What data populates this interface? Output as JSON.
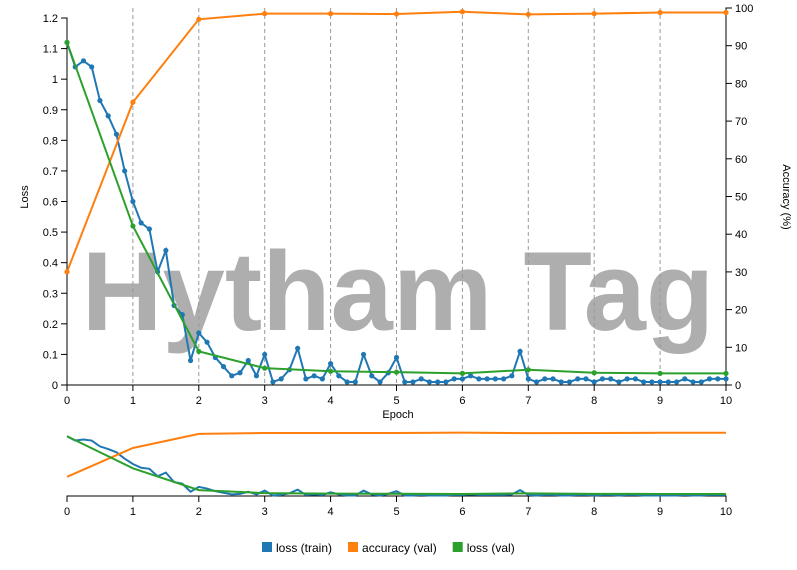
{
  "chart_data": {
    "type": "line",
    "watermark": "Hytham Tag",
    "xlabel": "Epoch",
    "ylabel": "Loss",
    "y2label": "Accuracy (%)",
    "xlim": [
      0,
      10
    ],
    "xticks": [
      0,
      1,
      2,
      3,
      4,
      5,
      6,
      7,
      8,
      9,
      10
    ],
    "ylim": [
      0,
      1.2
    ],
    "yticks": [
      0,
      0.1,
      0.2,
      0.3,
      0.4,
      0.5,
      0.6,
      0.7,
      0.8,
      0.9,
      1,
      1.1,
      1.2
    ],
    "y2lim": [
      0,
      100
    ],
    "y2ticks": [
      0,
      10,
      20,
      30,
      40,
      50,
      60,
      70,
      80,
      90,
      100
    ],
    "grid": "x",
    "series": [
      {
        "name": "loss (train)",
        "color": "#1f77b4",
        "x": [
          0,
          0.125,
          0.25,
          0.375,
          0.5,
          0.625,
          0.75,
          0.875,
          1,
          1.125,
          1.25,
          1.375,
          1.5,
          1.625,
          1.75,
          1.875,
          2,
          2.125,
          2.25,
          2.375,
          2.5,
          2.625,
          2.75,
          2.875,
          3,
          3.125,
          3.25,
          3.375,
          3.5,
          3.625,
          3.75,
          3.875,
          4,
          4.125,
          4.25,
          4.375,
          4.5,
          4.625,
          4.75,
          4.875,
          5,
          5.125,
          5.25,
          5.375,
          5.5,
          5.625,
          5.75,
          5.875,
          6,
          6.125,
          6.25,
          6.375,
          6.5,
          6.625,
          6.75,
          6.875,
          7,
          7.125,
          7.25,
          7.375,
          7.5,
          7.625,
          7.75,
          7.875,
          8,
          8.125,
          8.25,
          8.375,
          8.5,
          8.625,
          8.75,
          8.875,
          9,
          9.125,
          9.25,
          9.375,
          9.5,
          9.625,
          9.75,
          9.875,
          10
        ],
        "values": [
          1.12,
          1.04,
          1.06,
          1.04,
          0.93,
          0.88,
          0.82,
          0.7,
          0.6,
          0.53,
          0.51,
          0.37,
          0.44,
          0.26,
          0.23,
          0.08,
          0.17,
          0.14,
          0.09,
          0.06,
          0.03,
          0.04,
          0.08,
          0.03,
          0.1,
          0.01,
          0.02,
          0.05,
          0.12,
          0.02,
          0.03,
          0.02,
          0.07,
          0.03,
          0.01,
          0.01,
          0.1,
          0.03,
          0.01,
          0.04,
          0.09,
          0.01,
          0.01,
          0.02,
          0.01,
          0.01,
          0.01,
          0.02,
          0.02,
          0.03,
          0.02,
          0.02,
          0.02,
          0.02,
          0.03,
          0.11,
          0.02,
          0.01,
          0.02,
          0.02,
          0.01,
          0.01,
          0.02,
          0.02,
          0.01,
          0.02,
          0.02,
          0.01,
          0.02,
          0.02,
          0.01,
          0.01,
          0.01,
          0.01,
          0.01,
          0.02,
          0.01,
          0.01,
          0.02,
          0.02,
          0.02
        ]
      },
      {
        "name": "accuracy (val)",
        "color": "#ff7f0e",
        "axis": "y2",
        "x": [
          0,
          1,
          2,
          3,
          4,
          5,
          6,
          7,
          8,
          9,
          10
        ],
        "values": [
          30,
          75,
          97,
          98.5,
          98.5,
          98.4,
          99,
          98.3,
          98.5,
          98.8,
          98.8
        ]
      },
      {
        "name": "loss (val)",
        "color": "#2ca02c",
        "x": [
          0,
          1,
          2,
          3,
          4,
          5,
          6,
          7,
          8,
          9,
          10
        ],
        "values": [
          1.12,
          0.52,
          0.11,
          0.055,
          0.045,
          0.042,
          0.038,
          0.05,
          0.04,
          0.038,
          0.038
        ]
      }
    ]
  }
}
